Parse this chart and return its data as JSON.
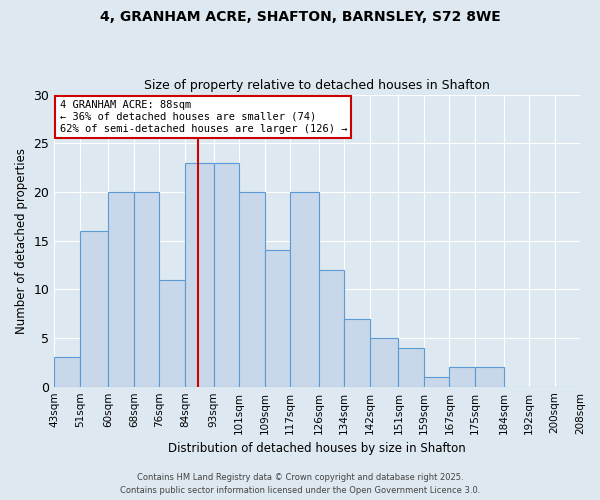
{
  "title_line1": "4, GRANHAM ACRE, SHAFTON, BARNSLEY, S72 8WE",
  "title_line2": "Size of property relative to detached houses in Shafton",
  "xlabel": "Distribution of detached houses by size in Shafton",
  "ylabel": "Number of detached properties",
  "bin_labels": [
    "43sqm",
    "51sqm",
    "60sqm",
    "68sqm",
    "76sqm",
    "84sqm",
    "93sqm",
    "101sqm",
    "109sqm",
    "117sqm",
    "126sqm",
    "134sqm",
    "142sqm",
    "151sqm",
    "159sqm",
    "167sqm",
    "175sqm",
    "184sqm",
    "192sqm",
    "200sqm",
    "208sqm"
  ],
  "bin_edges": [
    43,
    51,
    60,
    68,
    76,
    84,
    93,
    101,
    109,
    117,
    126,
    134,
    142,
    151,
    159,
    167,
    175,
    184,
    192,
    200,
    208
  ],
  "bar_heights": [
    3,
    16,
    20,
    20,
    11,
    23,
    23,
    20,
    14,
    20,
    12,
    7,
    5,
    4,
    1,
    2,
    2,
    0,
    0,
    0
  ],
  "bar_color": "#c8d8ea",
  "bar_edge_color": "#5b9bd5",
  "property_size": 88,
  "annotation_title": "4 GRANHAM ACRE: 88sqm",
  "annotation_line2": "← 36% of detached houses are smaller (74)",
  "annotation_line3": "62% of semi-detached houses are larger (126) →",
  "annotation_box_color": "#ffffff",
  "annotation_box_edge": "#cc0000",
  "vline_color": "#cc0000",
  "ylim": [
    0,
    30
  ],
  "background_color": "#dde8f0",
  "plot_bg_color": "#dde8f0",
  "footer_line1": "Contains HM Land Registry data © Crown copyright and database right 2025.",
  "footer_line2": "Contains public sector information licensed under the Open Government Licence 3.0."
}
